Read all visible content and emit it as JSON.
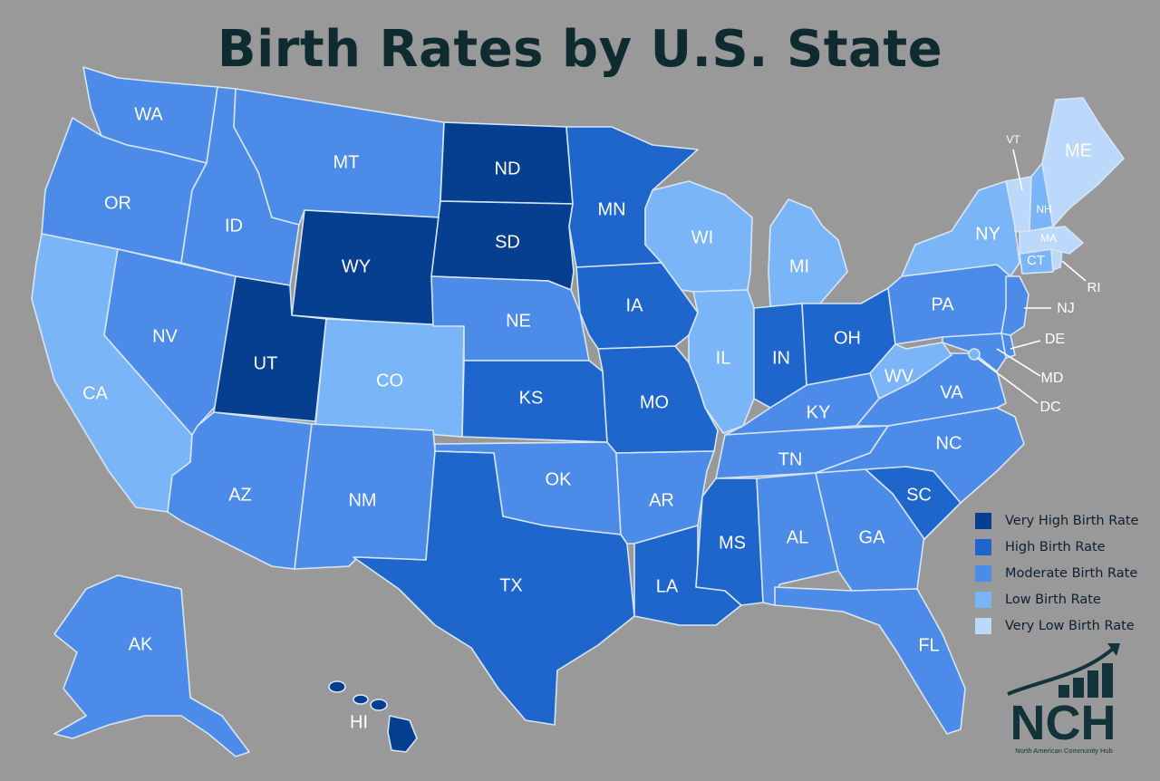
{
  "title": "Birth Rates by U.S. State",
  "legend": [
    {
      "label": "Very High Birth Rate",
      "color": "#073f90"
    },
    {
      "label": "High Birth Rate",
      "color": "#1e66cc"
    },
    {
      "label": "Moderate Birth Rate",
      "color": "#4c8ce8"
    },
    {
      "label": "Low Birth Rate",
      "color": "#7ab5f8"
    },
    {
      "label": "Very Low Birth Rate",
      "color": "#bcd8fb"
    }
  ],
  "states": {
    "WA": {
      "label": "WA",
      "category": "Moderate Birth Rate"
    },
    "OR": {
      "label": "OR",
      "category": "Moderate Birth Rate"
    },
    "CA": {
      "label": "CA",
      "category": "Low Birth Rate"
    },
    "NV": {
      "label": "NV",
      "category": "Moderate Birth Rate"
    },
    "ID": {
      "label": "ID",
      "category": "Moderate Birth Rate"
    },
    "MT": {
      "label": "MT",
      "category": "Moderate Birth Rate"
    },
    "WY": {
      "label": "WY",
      "category": "Very High Birth Rate"
    },
    "UT": {
      "label": "UT",
      "category": "Very High Birth Rate"
    },
    "CO": {
      "label": "CO",
      "category": "Low Birth Rate"
    },
    "AZ": {
      "label": "AZ",
      "category": "Moderate Birth Rate"
    },
    "NM": {
      "label": "NM",
      "category": "Moderate Birth Rate"
    },
    "ND": {
      "label": "ND",
      "category": "Very High Birth Rate"
    },
    "SD": {
      "label": "SD",
      "category": "Very High Birth Rate"
    },
    "NE": {
      "label": "NE",
      "category": "Moderate Birth Rate"
    },
    "KS": {
      "label": "KS",
      "category": "High Birth Rate"
    },
    "OK": {
      "label": "OK",
      "category": "Moderate Birth Rate"
    },
    "TX": {
      "label": "TX",
      "category": "High Birth Rate"
    },
    "MN": {
      "label": "MN",
      "category": "High Birth Rate"
    },
    "IA": {
      "label": "IA",
      "category": "High Birth Rate"
    },
    "MO": {
      "label": "MO",
      "category": "High Birth Rate"
    },
    "AR": {
      "label": "AR",
      "category": "Moderate Birth Rate"
    },
    "LA": {
      "label": "LA",
      "category": "High Birth Rate"
    },
    "WI": {
      "label": "WI",
      "category": "Low Birth Rate"
    },
    "IL": {
      "label": "IL",
      "category": "Low Birth Rate"
    },
    "MI": {
      "label": "MI",
      "category": "Low Birth Rate"
    },
    "IN": {
      "label": "IN",
      "category": "High Birth Rate"
    },
    "OH": {
      "label": "OH",
      "category": "High Birth Rate"
    },
    "KY": {
      "label": "KY",
      "category": "Moderate Birth Rate"
    },
    "TN": {
      "label": "TN",
      "category": "Moderate Birth Rate"
    },
    "MS": {
      "label": "MS",
      "category": "High Birth Rate"
    },
    "AL": {
      "label": "AL",
      "category": "Moderate Birth Rate"
    },
    "GA": {
      "label": "GA",
      "category": "Moderate Birth Rate"
    },
    "FL": {
      "label": "FL",
      "category": "Moderate Birth Rate"
    },
    "SC": {
      "label": "SC",
      "category": "High Birth Rate"
    },
    "NC": {
      "label": "NC",
      "category": "Moderate Birth Rate"
    },
    "VA": {
      "label": "VA",
      "category": "Moderate Birth Rate"
    },
    "WV": {
      "label": "WV",
      "category": "Low Birth Rate"
    },
    "PA": {
      "label": "PA",
      "category": "Moderate Birth Rate"
    },
    "NY": {
      "label": "NY",
      "category": "Low Birth Rate"
    },
    "NJ": {
      "label": "NJ",
      "category": "Moderate Birth Rate"
    },
    "DE": {
      "label": "DE",
      "category": "Moderate Birth Rate"
    },
    "MD": {
      "label": "MD",
      "category": "Moderate Birth Rate"
    },
    "DC": {
      "label": "DC",
      "category": "Low Birth Rate"
    },
    "CT": {
      "label": "CT",
      "category": "Low Birth Rate"
    },
    "RI": {
      "label": "RI",
      "category": "Very Low Birth Rate"
    },
    "MA": {
      "label": "MA",
      "category": "Very Low Birth Rate"
    },
    "VT": {
      "label": "VT",
      "category": "Very Low Birth Rate"
    },
    "NH": {
      "label": "NH",
      "category": "Low Birth Rate"
    },
    "ME": {
      "label": "ME",
      "category": "Very Low Birth Rate"
    },
    "AK": {
      "label": "AK",
      "category": "Moderate Birth Rate"
    },
    "HI": {
      "label": "HI",
      "category": "Very High Birth Rate"
    }
  },
  "logo": {
    "acronym": "NCH",
    "name": "North American Community Hub"
  }
}
